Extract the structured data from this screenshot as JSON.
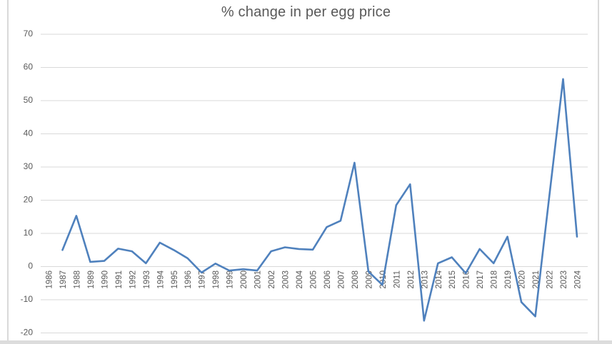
{
  "chart_data": {
    "type": "line",
    "title": "% change in per egg price",
    "xlabel": "",
    "ylabel": "",
    "ylim": [
      -20,
      70
    ],
    "yticks": [
      70,
      60,
      50,
      40,
      30,
      20,
      10,
      0,
      -10,
      -20
    ],
    "grid": true,
    "legend_position": "none",
    "categories": [
      "1986",
      "1987",
      "1988",
      "1989",
      "1990",
      "1991",
      "1992",
      "1993",
      "1994",
      "1995",
      "1996",
      "1997",
      "1998",
      "1999",
      "2000",
      "2001",
      "2002",
      "2003",
      "2004",
      "2005",
      "2006",
      "2007",
      "2008",
      "2009",
      "2010",
      "2011",
      "2012",
      "2013",
      "2014",
      "2015",
      "2016",
      "2017",
      "2018",
      "2019",
      "2020",
      "2021",
      "2022",
      "2023",
      "2024"
    ],
    "values": [
      null,
      5,
      15.3,
      1.4,
      1.7,
      5.4,
      4.6,
      1,
      7.2,
      5,
      2.5,
      -1.8,
      0.9,
      -1.2,
      -0.8,
      -1.2,
      4.6,
      5.8,
      5.3,
      5.1,
      11.9,
      13.8,
      31.3,
      -1.5,
      -5.5,
      18.5,
      24.8,
      -16.3,
      1,
      2.8,
      -2,
      5.3,
      1,
      9,
      -10.7,
      -15,
      21,
      56.5,
      9
    ],
    "colors": {
      "line": "#4f81bd",
      "gridline": "#d9d9d9",
      "axis_labels": "#595959",
      "title": "#595959",
      "background": "#ffffff",
      "chart_border": "#d9d9d9"
    }
  }
}
